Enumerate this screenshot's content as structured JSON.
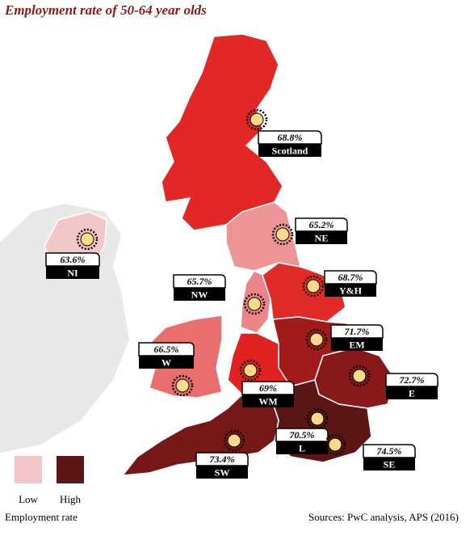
{
  "title": "Employment rate of 50-64 year olds",
  "regions": [
    {
      "name": "Scotland",
      "value": 68.8,
      "value_label": "68.8%"
    },
    {
      "name": "NE",
      "value": 65.2,
      "value_label": "65.2%"
    },
    {
      "name": "NI",
      "value": 63.6,
      "value_label": "63.6%"
    },
    {
      "name": "NW",
      "value": 65.7,
      "value_label": "65.7%"
    },
    {
      "name": "Y&H",
      "value": 68.7,
      "value_label": "68.7%"
    },
    {
      "name": "W",
      "value": 66.5,
      "value_label": "66.5%"
    },
    {
      "name": "EM",
      "value": 71.7,
      "value_label": "71.7%"
    },
    {
      "name": "WM",
      "value": 69,
      "value_label": "69%"
    },
    {
      "name": "E",
      "value": 72.7,
      "value_label": "72.7%"
    },
    {
      "name": "L",
      "value": 70.5,
      "value_label": "70.5%"
    },
    {
      "name": "SE",
      "value": 74.5,
      "value_label": "74.5%"
    },
    {
      "name": "SW",
      "value": 73.4,
      "value_label": "73.4%"
    }
  ],
  "scale_colors": [
    "#f3c6c8",
    "#e0201e",
    "#5c1616"
  ],
  "legend": {
    "low_label": "Low",
    "high_label": "High",
    "title": "Employment rate"
  },
  "source": "Sources: PwC analysis, APS (2016)"
}
